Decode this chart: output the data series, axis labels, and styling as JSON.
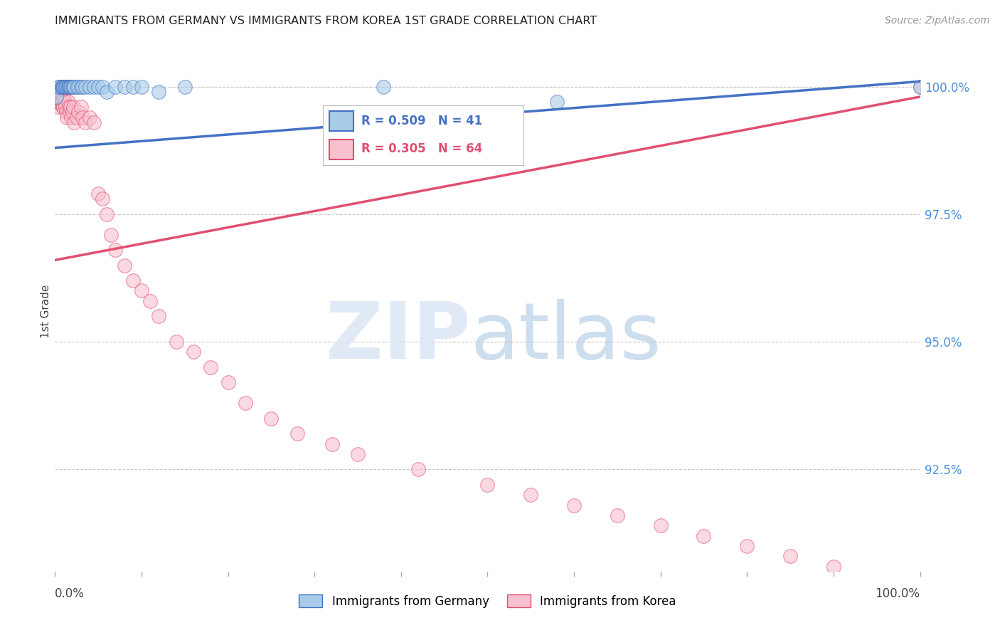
{
  "title": "IMMIGRANTS FROM GERMANY VS IMMIGRANTS FROM KOREA 1ST GRADE CORRELATION CHART",
  "source": "Source: ZipAtlas.com",
  "ylabel": "1st Grade",
  "ylabel_right_labels": [
    "100.0%",
    "97.5%",
    "95.0%",
    "92.5%"
  ],
  "ylabel_right_values": [
    1.0,
    0.975,
    0.95,
    0.925
  ],
  "xlim": [
    0.0,
    1.0
  ],
  "ylim": [
    0.905,
    1.007
  ],
  "legend_germany": "Immigrants from Germany",
  "legend_korea": "Immigrants from Korea",
  "R_germany": 0.509,
  "N_germany": 41,
  "R_korea": 0.305,
  "N_korea": 64,
  "color_germany": "#a8cce8",
  "color_korea": "#f9c0cf",
  "line_color_germany": "#4472c4",
  "line_color_korea": "#e05070",
  "germany_x": [
    0.001,
    0.005,
    0.005,
    0.008,
    0.008,
    0.009,
    0.01,
    0.01,
    0.01,
    0.011,
    0.012,
    0.013,
    0.014,
    0.015,
    0.015,
    0.016,
    0.017,
    0.018,
    0.019,
    0.02,
    0.021,
    0.022,
    0.025,
    0.027,
    0.03,
    0.032,
    0.035,
    0.04,
    0.045,
    0.05,
    0.055,
    0.06,
    0.07,
    0.08,
    0.09,
    0.1,
    0.12,
    0.15,
    0.38,
    0.58,
    1.0
  ],
  "germany_y": [
    0.998,
    1.0,
    1.0,
    1.0,
    1.0,
    1.0,
    1.0,
    1.0,
    1.0,
    1.0,
    1.0,
    1.0,
    1.0,
    1.0,
    1.0,
    1.0,
    1.0,
    1.0,
    1.0,
    1.0,
    1.0,
    1.0,
    1.0,
    1.0,
    1.0,
    1.0,
    1.0,
    1.0,
    1.0,
    1.0,
    1.0,
    0.999,
    1.0,
    1.0,
    1.0,
    1.0,
    0.999,
    1.0,
    1.0,
    0.997,
    1.0
  ],
  "korea_x": [
    0.001,
    0.001,
    0.002,
    0.002,
    0.003,
    0.003,
    0.004,
    0.005,
    0.005,
    0.006,
    0.007,
    0.008,
    0.009,
    0.01,
    0.01,
    0.011,
    0.012,
    0.013,
    0.014,
    0.015,
    0.016,
    0.017,
    0.018,
    0.019,
    0.02,
    0.021,
    0.022,
    0.025,
    0.027,
    0.03,
    0.032,
    0.035,
    0.04,
    0.045,
    0.05,
    0.055,
    0.06,
    0.065,
    0.07,
    0.08,
    0.09,
    0.1,
    0.11,
    0.12,
    0.14,
    0.16,
    0.18,
    0.2,
    0.22,
    0.25,
    0.28,
    0.32,
    0.35,
    0.42,
    0.5,
    0.55,
    0.6,
    0.65,
    0.7,
    0.75,
    0.8,
    0.85,
    0.9,
    1.0
  ],
  "korea_y": [
    0.999,
    0.998,
    0.997,
    0.996,
    0.998,
    0.997,
    0.998,
    0.999,
    0.997,
    0.998,
    0.997,
    0.997,
    0.996,
    0.998,
    0.996,
    0.997,
    0.996,
    0.995,
    0.994,
    0.997,
    0.996,
    0.995,
    0.996,
    0.994,
    0.995,
    0.996,
    0.993,
    0.994,
    0.995,
    0.996,
    0.994,
    0.993,
    0.994,
    0.993,
    0.979,
    0.978,
    0.975,
    0.971,
    0.968,
    0.965,
    0.962,
    0.96,
    0.958,
    0.955,
    0.95,
    0.948,
    0.945,
    0.942,
    0.938,
    0.935,
    0.932,
    0.93,
    0.928,
    0.925,
    0.922,
    0.92,
    0.918,
    0.916,
    0.914,
    0.912,
    0.91,
    0.908,
    0.906,
    1.0
  ],
  "trend_germany_x0": 0.0,
  "trend_germany_y0": 0.988,
  "trend_germany_x1": 1.0,
  "trend_germany_y1": 1.001,
  "trend_korea_x0": 0.0,
  "trend_korea_y0": 0.966,
  "trend_korea_x1": 1.0,
  "trend_korea_y1": 0.998
}
